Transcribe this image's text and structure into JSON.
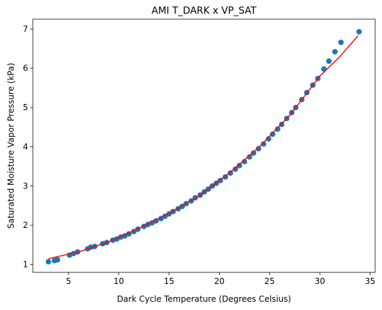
{
  "chart_data": {
    "type": "scatter",
    "title": "AMI T_DARK x VP_SAT",
    "xlabel": "Dark Cycle Temperature (Degrees Celsius)",
    "ylabel": "Saturated Moisture Vapor Pressure (kPa)",
    "xlim": [
      1.45,
      35.5
    ],
    "ylim": [
      0.8,
      7.25
    ],
    "xticks": [
      5,
      10,
      15,
      20,
      25,
      30,
      35
    ],
    "yticks": [
      1,
      2,
      3,
      4,
      5,
      6,
      7
    ],
    "grid": false,
    "colors": {
      "points": "#1f77b4",
      "fit": "#ff0000"
    },
    "series": [
      {
        "kind": "points",
        "x": [
          3.0,
          3.6,
          3.9,
          5.1,
          5.5,
          5.9,
          6.9,
          7.2,
          7.6,
          8.4,
          8.8,
          9.4,
          9.8,
          10.2,
          10.6,
          11.0,
          11.5,
          11.9,
          12.5,
          12.9,
          13.3,
          13.7,
          14.2,
          14.6,
          15.0,
          15.4,
          15.9,
          16.3,
          16.7,
          17.2,
          17.6,
          18.1,
          18.5,
          18.9,
          19.3,
          19.7,
          20.1,
          20.6,
          21.1,
          21.6,
          22.0,
          22.5,
          23.0,
          23.4,
          23.9,
          24.4,
          24.9,
          25.3,
          25.8,
          26.2,
          26.7,
          27.2,
          27.6,
          28.2,
          28.7,
          29.3,
          29.8,
          30.4,
          30.9,
          31.5,
          32.1,
          33.9
        ],
        "y": [
          1.07,
          1.1,
          1.12,
          1.24,
          1.28,
          1.32,
          1.4,
          1.44,
          1.46,
          1.53,
          1.56,
          1.62,
          1.65,
          1.7,
          1.73,
          1.78,
          1.84,
          1.9,
          1.97,
          2.02,
          2.06,
          2.11,
          2.17,
          2.23,
          2.29,
          2.35,
          2.42,
          2.48,
          2.55,
          2.62,
          2.7,
          2.77,
          2.85,
          2.92,
          3.0,
          3.07,
          3.14,
          3.23,
          3.33,
          3.43,
          3.52,
          3.62,
          3.74,
          3.84,
          3.95,
          4.07,
          4.2,
          4.32,
          4.45,
          4.57,
          4.72,
          4.87,
          5.0,
          5.2,
          5.38,
          5.57,
          5.74,
          5.98,
          6.18,
          6.42,
          6.66,
          6.93
        ]
      },
      {
        "kind": "fit",
        "x": [
          3.0,
          6.0,
          9.0,
          12.0,
          15.0,
          18.0,
          21.0,
          24.0,
          27.0,
          30.0,
          32.0,
          33.8
        ],
        "y": [
          1.15,
          1.32,
          1.58,
          1.92,
          2.3,
          2.75,
          3.33,
          4.0,
          4.8,
          5.8,
          6.3,
          6.83
        ]
      }
    ]
  }
}
